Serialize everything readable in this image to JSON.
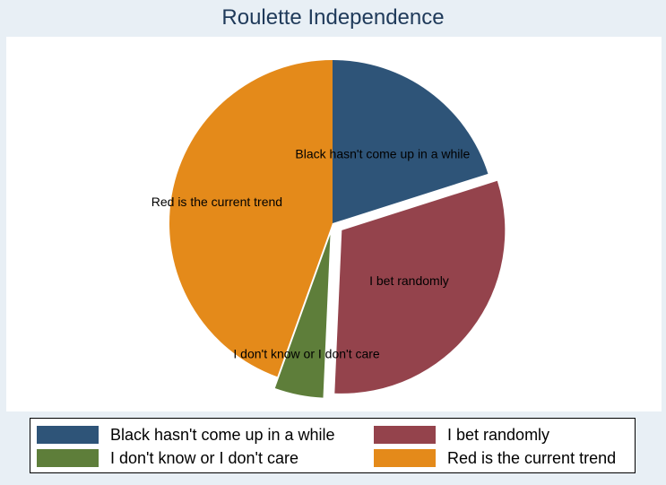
{
  "chart_data": {
    "type": "pie",
    "title": "Roulette Independence",
    "start": "12 o'clock",
    "direction": "clockwise",
    "slices": [
      {
        "label": "Black hasn't come up in a while",
        "value": 20.1,
        "color": "#2e5478",
        "exploded": false
      },
      {
        "label": "I bet randomly",
        "value": 30.6,
        "color": "#94434c",
        "exploded": true
      },
      {
        "label": "I don't know or I don't care",
        "value": 4.8,
        "color": "#5e7e3a",
        "exploded": true
      },
      {
        "label": "Red is the current trend",
        "value": 44.5,
        "color": "#e48a1a",
        "exploded": false
      }
    ],
    "legend": {
      "placement": "bottom",
      "columns": 2,
      "entries": [
        "Black hasn't come up in a while",
        "I bet randomly",
        "I don't know or I don't care",
        "Red is the current trend"
      ]
    }
  }
}
